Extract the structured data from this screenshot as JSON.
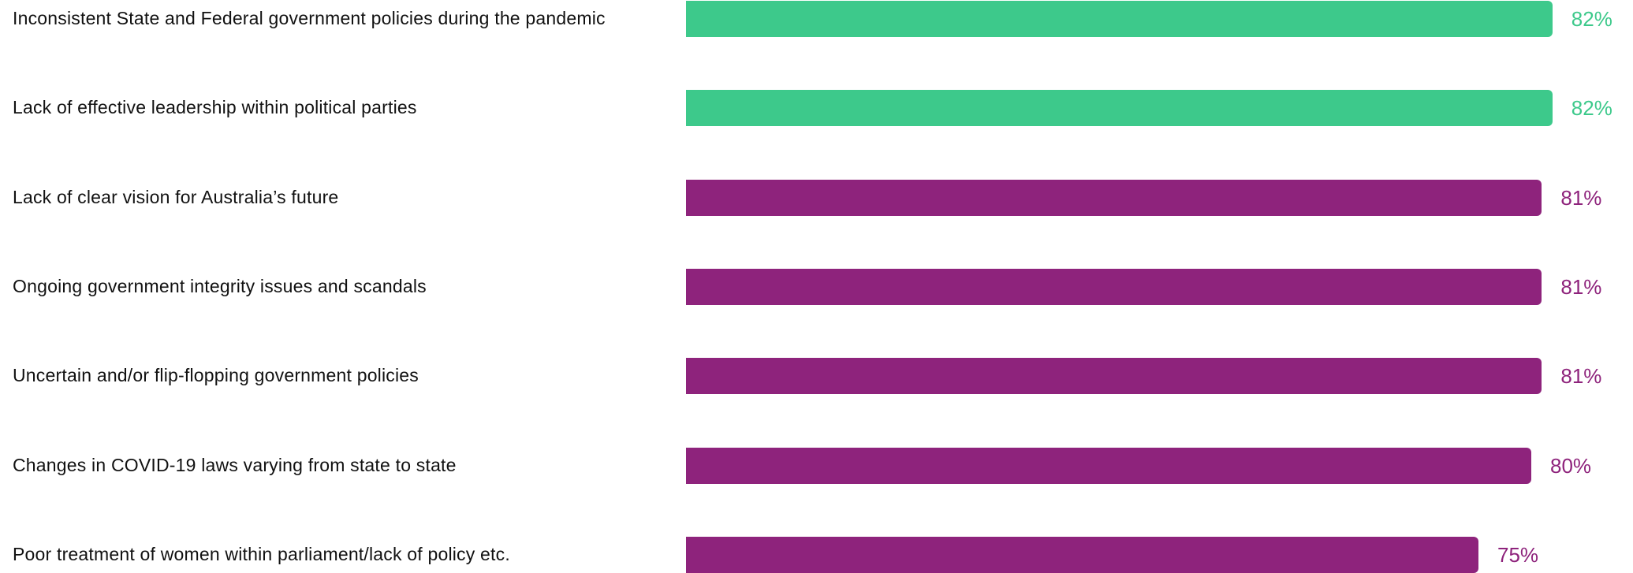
{
  "chart_data": {
    "type": "bar",
    "orientation": "horizontal",
    "categories": [
      "Inconsistent State and Federal government policies during the pandemic",
      "Lack of effective leadership within political parties",
      "Lack of clear vision for Australia’s future",
      "Ongoing government integrity issues and scandals",
      "Uncertain and/or flip-flopping government policies",
      "Changes in COVID-19 laws varying from state to state",
      "Poor treatment of women within parliament/lack of policy etc."
    ],
    "values": [
      82,
      82,
      81,
      81,
      81,
      80,
      75
    ],
    "value_labels": [
      "82%",
      "82%",
      "81%",
      "81%",
      "81%",
      "80%",
      "75%"
    ],
    "highlight_indices": [
      0,
      1
    ],
    "colors": {
      "highlight": "#3dc98b",
      "default": "#8e237c",
      "label_text": "#111111"
    },
    "title": "",
    "xlabel": "",
    "ylabel": "",
    "grid": false,
    "legend": "none"
  }
}
